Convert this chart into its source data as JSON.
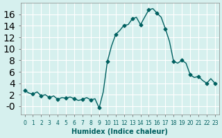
{
  "xlabel": "Humidex (Indice chaleur)",
  "ylabel": "",
  "background_color": "#d6f0ee",
  "grid_color": "#ffffff",
  "line_color": "#006060",
  "marker_color": "#006060",
  "x": [
    0,
    0.5,
    1,
    1.5,
    2,
    2.5,
    3,
    3.5,
    4,
    4.5,
    5,
    5.5,
    6,
    6.5,
    7,
    7.5,
    8,
    8.5,
    9,
    9.5,
    10,
    10.5,
    11,
    11.5,
    12,
    12.5,
    13,
    13.5,
    14,
    14.5,
    15,
    15.5,
    16,
    16.5,
    17,
    17.5,
    18,
    18.5,
    19,
    19.5,
    20,
    20.5,
    21,
    21.5,
    22,
    22.5,
    23
  ],
  "y": [
    2.8,
    2.3,
    2.1,
    2.5,
    1.8,
    2.0,
    1.5,
    1.8,
    1.2,
    1.5,
    1.4,
    1.6,
    1.3,
    1.0,
    1.2,
    1.5,
    1.1,
    1.3,
    -0.3,
    2.5,
    7.8,
    10.5,
    12.5,
    13.2,
    14.1,
    14.2,
    15.2,
    15.5,
    14.2,
    15.5,
    16.8,
    17.0,
    16.2,
    15.5,
    13.5,
    11.3,
    7.8,
    7.5,
    8.0,
    7.5,
    5.5,
    5.0,
    5.2,
    4.5,
    4.0,
    4.8,
    4.0
  ],
  "xlim": [
    -0.5,
    23.5
  ],
  "ylim": [
    -1.5,
    18
  ],
  "yticks": [
    0,
    2,
    4,
    6,
    8,
    10,
    12,
    14,
    16
  ],
  "ytick_labels": [
    "-0",
    "2",
    "4",
    "6",
    "8",
    "10",
    "12",
    "14",
    "16"
  ],
  "xticks": [
    0,
    1,
    2,
    3,
    4,
    5,
    6,
    7,
    8,
    9,
    10,
    11,
    12,
    13,
    14,
    15,
    16,
    17,
    18,
    19,
    20,
    21,
    22,
    23
  ],
  "marker_x": [
    0,
    1,
    2,
    3,
    4,
    5,
    6,
    7,
    8,
    9,
    10,
    11,
    12,
    13,
    14,
    15,
    16,
    17,
    18,
    19,
    20,
    21,
    22,
    23
  ],
  "marker_y": [
    2.8,
    2.1,
    1.8,
    1.5,
    1.2,
    1.4,
    1.3,
    1.2,
    1.1,
    -0.3,
    7.8,
    12.5,
    14.1,
    15.2,
    14.2,
    16.8,
    16.2,
    13.5,
    7.8,
    8.0,
    5.5,
    5.2,
    4.0,
    4.0
  ]
}
